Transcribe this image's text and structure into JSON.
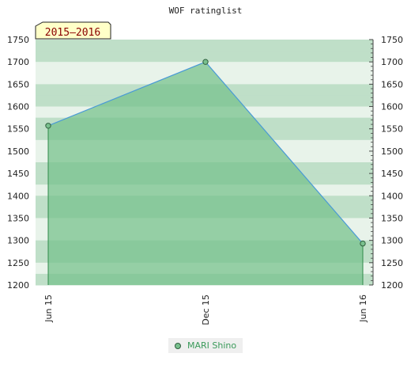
{
  "colors": {
    "band_light": "#e8f3ea",
    "band_dark": "#bfdfc8",
    "area_fill": "#74c08a",
    "line": "#4a9ad6",
    "marker": "#79c08e",
    "marker_stroke": "#2f5f3e",
    "badge_bg": "#ffffc8",
    "badge_text": "#8b0000",
    "legend_text": "#3a9a5a"
  },
  "chart_data": {
    "type": "area",
    "title": "WOF ratinglist",
    "badge": "2015–2016",
    "xlabel": "",
    "ylabel": "",
    "x": [
      "Jun 15",
      "Dec 15",
      "Jun 16"
    ],
    "xticks": [
      "Jun 15",
      "Dec 15",
      "Jun 16"
    ],
    "ylim": [
      1200,
      1750
    ],
    "yticks": [
      "1200",
      "1250",
      "1300",
      "1350",
      "1400",
      "1450",
      "1500",
      "1550",
      "1600",
      "1650",
      "1700",
      "1750"
    ],
    "grid": "horizontal bands",
    "legend_position": "bottom-center",
    "series": [
      {
        "name": "MARI Shino",
        "values": [
          1557,
          1700,
          1293
        ]
      }
    ]
  }
}
